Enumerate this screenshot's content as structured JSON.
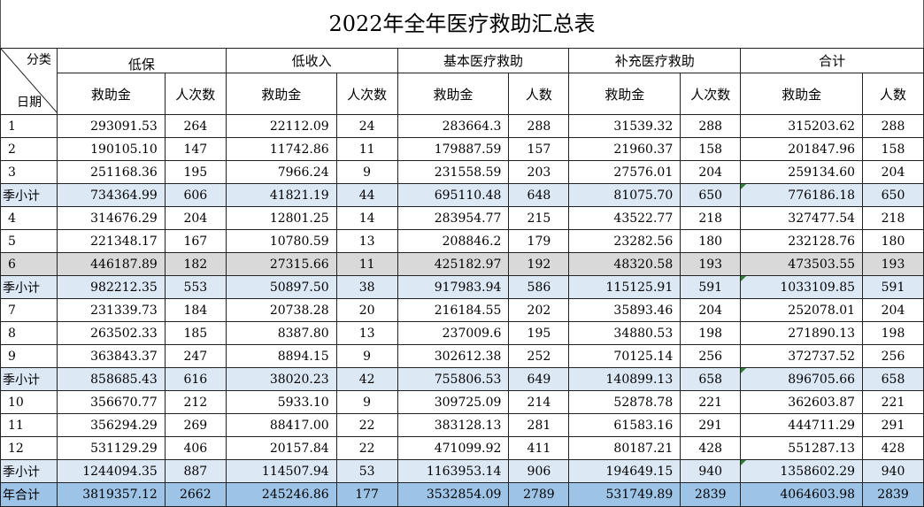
{
  "title": "2022年全年医疗救助汇总表",
  "corner": {
    "top": "分类",
    "bottom": "日期"
  },
  "groups": [
    "低保",
    "低收入",
    "基本医疗救助",
    "补充医疗救助",
    "合计"
  ],
  "subheaders": [
    "救助金",
    "人次数",
    "救助金",
    "人次数",
    "救助金",
    "人数",
    "救助金",
    "人次数",
    "救助金",
    "人数"
  ],
  "rows": [
    {
      "label": "1",
      "type": "month",
      "values": [
        "293091.53",
        "264",
        "22112.09",
        "24",
        "283664.3",
        "288",
        "31539.32",
        "288",
        "315203.62",
        "288"
      ]
    },
    {
      "label": "2",
      "type": "month",
      "values": [
        "190105.10",
        "147",
        "11742.86",
        "11",
        "179887.59",
        "157",
        "21960.37",
        "158",
        "201847.96",
        "158"
      ]
    },
    {
      "label": "3",
      "type": "month",
      "values": [
        "251168.36",
        "195",
        "7966.24",
        "9",
        "231558.59",
        "203",
        "27576.01",
        "204",
        "259134.60",
        "204"
      ]
    },
    {
      "label": "季小计",
      "type": "subtotal",
      "values": [
        "734364.99",
        "606",
        "41821.19",
        "44",
        "695110.48",
        "648",
        "81075.70",
        "650",
        "776186.18",
        "650"
      ]
    },
    {
      "label": "4",
      "type": "month",
      "values": [
        "314676.29",
        "204",
        "12801.25",
        "14",
        "283954.77",
        "215",
        "43522.77",
        "218",
        "327477.54",
        "218"
      ]
    },
    {
      "label": "5",
      "type": "month",
      "values": [
        "221348.17",
        "167",
        "10780.59",
        "13",
        "208846.2",
        "179",
        "23282.56",
        "180",
        "232128.76",
        "180"
      ]
    },
    {
      "label": "6",
      "type": "grey",
      "values": [
        "446187.89",
        "182",
        "27315.66",
        "11",
        "425182.97",
        "192",
        "48320.58",
        "193",
        "473503.55",
        "193"
      ]
    },
    {
      "label": "季小计",
      "type": "subtotal",
      "values": [
        "982212.35",
        "553",
        "50897.50",
        "38",
        "917983.94",
        "586",
        "115125.91",
        "591",
        "1033109.85",
        "591"
      ]
    },
    {
      "label": "7",
      "type": "month",
      "values": [
        "231339.73",
        "184",
        "20738.28",
        "20",
        "216184.55",
        "202",
        "35893.46",
        "204",
        "252078.01",
        "204"
      ]
    },
    {
      "label": "8",
      "type": "month",
      "values": [
        "263502.33",
        "185",
        "8387.80",
        "13",
        "237009.6",
        "195",
        "34880.53",
        "198",
        "271890.13",
        "198"
      ]
    },
    {
      "label": "9",
      "type": "month",
      "values": [
        "363843.37",
        "247",
        "8894.15",
        "9",
        "302612.38",
        "252",
        "70125.14",
        "256",
        "372737.52",
        "256"
      ]
    },
    {
      "label": "季小计",
      "type": "subtotal",
      "values": [
        "858685.43",
        "616",
        "38020.23",
        "42",
        "755806.53",
        "649",
        "140899.13",
        "658",
        "896705.66",
        "658"
      ]
    },
    {
      "label": "10",
      "type": "month",
      "values": [
        "356670.77",
        "212",
        "5933.10",
        "9",
        "309725.09",
        "214",
        "52878.78",
        "221",
        "362603.87",
        "221"
      ]
    },
    {
      "label": "11",
      "type": "month",
      "values": [
        "356294.29",
        "269",
        "88417.00",
        "22",
        "383128.13",
        "281",
        "61583.16",
        "291",
        "444711.29",
        "291"
      ]
    },
    {
      "label": "12",
      "type": "month",
      "values": [
        "531129.29",
        "406",
        "20157.84",
        "22",
        "471099.92",
        "411",
        "80187.21",
        "428",
        "551287.13",
        "428"
      ]
    },
    {
      "label": "季小计",
      "type": "subtotal",
      "values": [
        "1244094.35",
        "887",
        "114507.94",
        "53",
        "1163953.14",
        "906",
        "194649.15",
        "940",
        "1358602.29",
        "940"
      ]
    },
    {
      "label": "年合计",
      "type": "total",
      "values": [
        "3819357.12",
        "2662",
        "245246.86",
        "177",
        "3532854.09",
        "2789",
        "531749.89",
        "2839",
        "4064603.98",
        "2839"
      ]
    }
  ],
  "colors": {
    "subtotal_bg": "#dde8f5",
    "total_bg": "#9dc3e6",
    "highlight_bg": "#d9d9d9",
    "comment_marker": "#2e7d32"
  }
}
